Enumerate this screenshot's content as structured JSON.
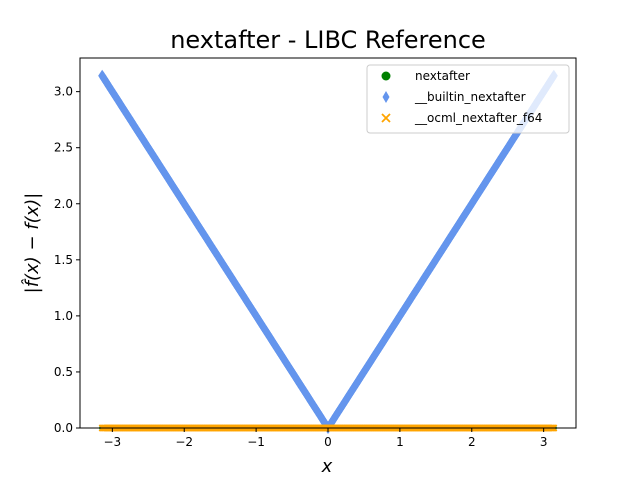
{
  "chart_data": {
    "type": "scatter",
    "title": "nextafter - LIBC Reference",
    "xlabel": "x",
    "ylabel": "|f̂(x) − f(x)|",
    "xlim": [
      -3.45,
      3.45
    ],
    "ylim": [
      0.0,
      3.3
    ],
    "xticks": [
      -3,
      -2,
      -1,
      0,
      1,
      2,
      3
    ],
    "xtick_labels": [
      "−3",
      "−2",
      "−1",
      "0",
      "1",
      "2",
      "3"
    ],
    "yticks": [
      0.0,
      0.5,
      1.0,
      1.5,
      2.0,
      2.5,
      3.0
    ],
    "ytick_labels": [
      "0.0",
      "0.5",
      "1.0",
      "1.5",
      "2.0",
      "2.5",
      "3.0"
    ],
    "grid": false,
    "legend_position": "upper-right",
    "series": [
      {
        "name": "nextafter",
        "marker": "circle",
        "color": "#008000",
        "x_range": [
          -3.14159,
          3.14159
        ],
        "y_function": "0",
        "description_values": {
          "x": [
            -3.14159,
            0,
            3.14159
          ],
          "y": [
            0,
            0,
            0
          ]
        }
      },
      {
        "name": "__builtin_nextafter",
        "marker": "diamond",
        "color": "#6495ED",
        "x_range": [
          -3.14159,
          3.14159
        ],
        "y_function": "|x|",
        "description_values": {
          "x": [
            -3.14159,
            0,
            3.14159
          ],
          "y": [
            3.14159,
            0,
            3.14159
          ]
        }
      },
      {
        "name": "__ocml_nextafter_f64",
        "marker": "x",
        "color": "#FFA500",
        "x_range": [
          -3.14159,
          3.14159
        ],
        "y_function": "0",
        "description_values": {
          "x": [
            -3.14159,
            0,
            3.14159
          ],
          "y": [
            0,
            0,
            0
          ]
        }
      }
    ]
  }
}
